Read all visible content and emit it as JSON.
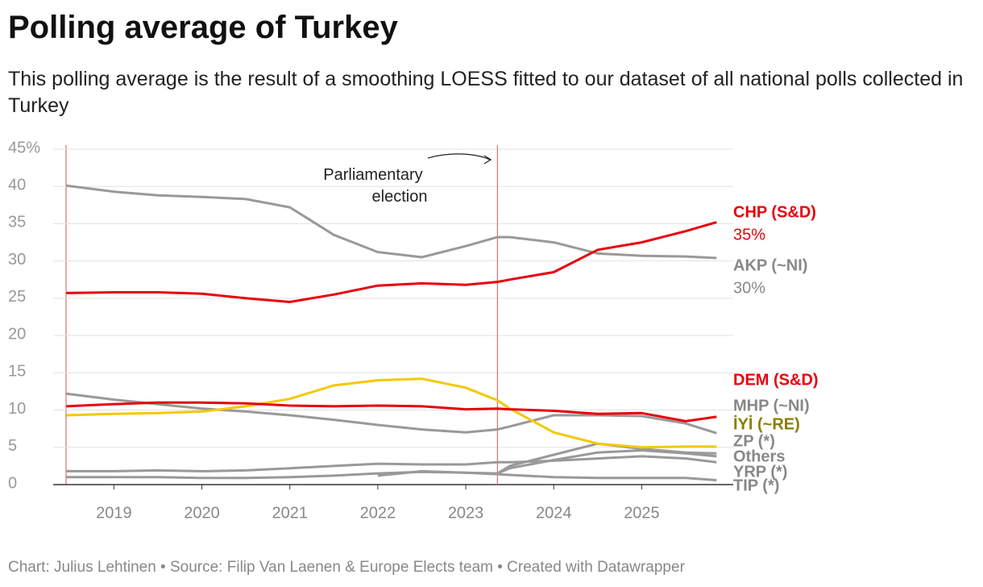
{
  "chart_data": {
    "type": "line",
    "title": "Polling average of Turkey",
    "subtitle": "This polling average is the result of a smoothing LOESS fitted to our dataset of all national polls collected in Turkey",
    "source": "Chart: Julius Lehtinen • Source: Filip Van Laenen & Europe Elects team • Created with Datawrapper",
    "annotation": {
      "text": "Parliamentary election",
      "x": 2023.36
    },
    "x": [
      2018.46,
      2019.0,
      2019.5,
      2020.0,
      2020.5,
      2021.0,
      2021.5,
      2022.0,
      2022.5,
      2023.0,
      2023.36,
      2023.5,
      2024.0,
      2024.5,
      2025.0,
      2025.5,
      2025.85
    ],
    "xlim": [
      2018.31,
      2026.04
    ],
    "xticks": [
      2019,
      2020,
      2021,
      2022,
      2023,
      2024,
      2025
    ],
    "ylim": [
      0,
      45
    ],
    "yticks": [
      0,
      5,
      10,
      15,
      20,
      25,
      30,
      35,
      40,
      {
        "value": 45,
        "label": "45%"
      }
    ],
    "grid": true,
    "series": [
      {
        "name": "AKP (~NI)",
        "color": "#999999",
        "label_color": "#888888",
        "values": [
          40.1,
          39.3,
          38.8,
          38.6,
          38.3,
          37.2,
          33.5,
          31.2,
          30.5,
          32,
          33.2,
          33.2,
          32.5,
          31,
          30.7,
          30.6,
          30.4
        ],
        "value_labels": [
          null,
          null,
          null,
          null,
          null,
          null,
          null,
          null,
          null,
          null,
          null,
          null,
          null,
          null,
          null,
          null,
          "30%"
        ]
      },
      {
        "name": "Others",
        "color": "#999999",
        "label_color": "#888888",
        "values": [
          1.8,
          1.8,
          1.9,
          1.8,
          1.9,
          2.2,
          2.5,
          2.8,
          2.7,
          2.7,
          3,
          3,
          3.2,
          3.5,
          3.8,
          3.5,
          3
        ]
      },
      {
        "name": "TIP (*)",
        "color": "#999999",
        "label_color": "#888888",
        "values": [
          1,
          1,
          1,
          0.9,
          0.9,
          1,
          1.2,
          1.5,
          1.7,
          1.6,
          1.4,
          1.3,
          1,
          0.9,
          0.9,
          0.9,
          0.6
        ]
      },
      {
        "name": "YRP (*)",
        "color": "#999999",
        "label_color": "#888888",
        "values": [
          null,
          null,
          null,
          null,
          null,
          null,
          null,
          null,
          null,
          null,
          1.5,
          2.2,
          3.3,
          4.3,
          4.6,
          4.2,
          3.8
        ]
      },
      {
        "name": "ZP (*)",
        "color": "#999999",
        "label_color": "#888888",
        "values": [
          null,
          null,
          null,
          null,
          null,
          null,
          null,
          1.2,
          1.8,
          1.6,
          1.5,
          2.5,
          4,
          5.5,
          4.8,
          4.3,
          4.2
        ]
      },
      {
        "name": "MHP (~NI)",
        "color": "#999999",
        "label_color": "#888888",
        "values": [
          12.2,
          11.4,
          10.8,
          10.2,
          9.8,
          9.3,
          8.7,
          8,
          7.4,
          7,
          7.4,
          7.8,
          9.3,
          9.3,
          9.2,
          8.2,
          6.9
        ]
      },
      {
        "name": "İYİ (~RE)",
        "color": "#f5c800",
        "label_color": "#8b7d00",
        "values": [
          9.3,
          9.5,
          9.6,
          9.8,
          10.5,
          11.5,
          13.3,
          14,
          14.2,
          13,
          11.3,
          10.2,
          7,
          5.5,
          5,
          5.1,
          5.1
        ]
      },
      {
        "name": "DEM (S&D)",
        "color": "#e8000b",
        "label_color": "#e8000b",
        "values": [
          10.5,
          10.8,
          11,
          11,
          10.9,
          10.6,
          10.5,
          10.6,
          10.5,
          10.1,
          10.2,
          10.1,
          9.9,
          9.5,
          9.6,
          8.5,
          9.1
        ]
      },
      {
        "name": "CHP (S&D)",
        "color": "#e8000b",
        "label_color": "#e8000b",
        "values": [
          25.7,
          25.8,
          25.8,
          25.6,
          25,
          24.5,
          25.5,
          26.7,
          27,
          26.8,
          27.2,
          27.5,
          28.5,
          31.5,
          32.5,
          34,
          35.2
        ],
        "value_labels": [
          null,
          null,
          null,
          null,
          null,
          null,
          null,
          null,
          null,
          null,
          null,
          null,
          null,
          null,
          null,
          null,
          "35%"
        ]
      }
    ]
  }
}
